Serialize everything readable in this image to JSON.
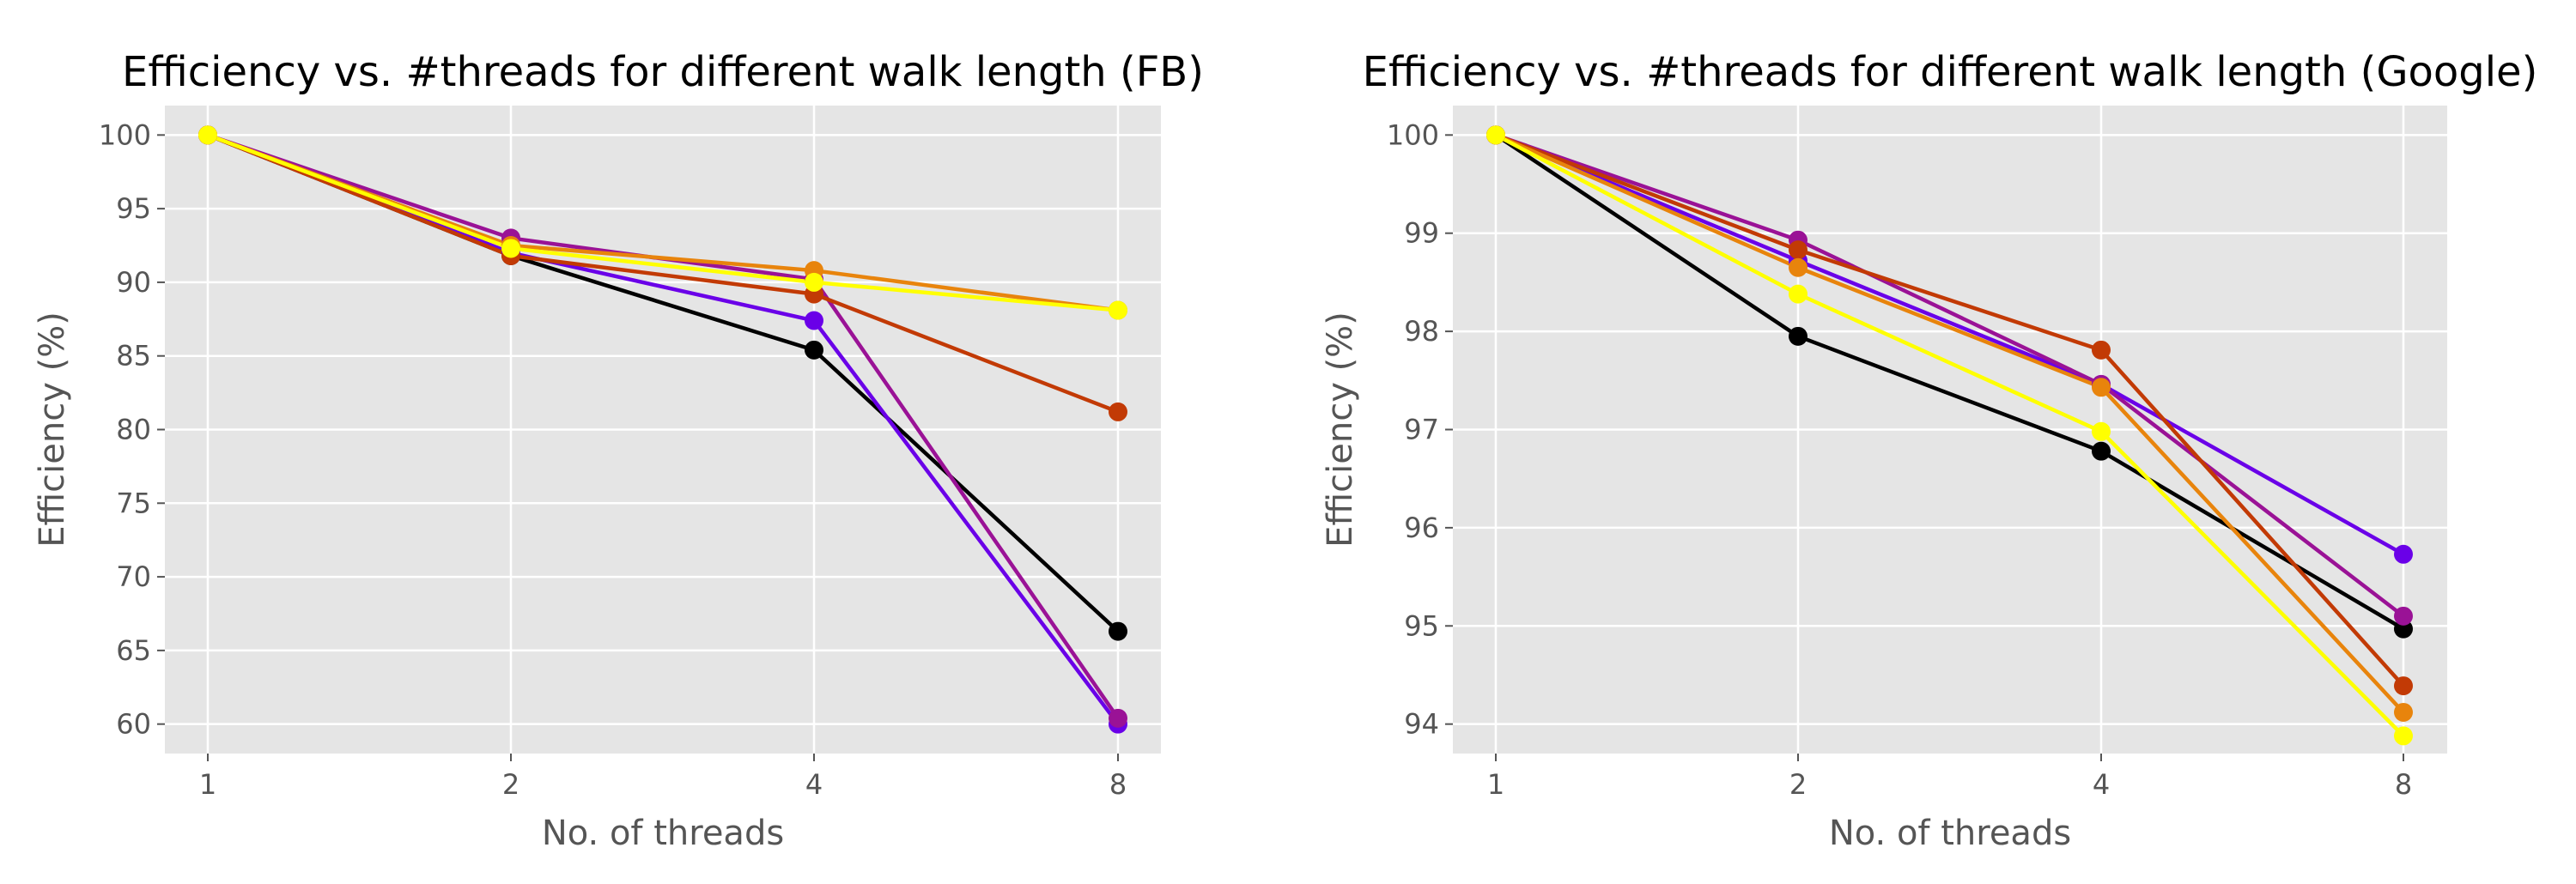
{
  "chart_data": [
    {
      "type": "line",
      "title": "Efficiency vs. #threads for different walk length (FB)",
      "xlabel": "No. of threads",
      "ylabel": "Efficiency (%)",
      "categories": [
        "1",
        "2",
        "4",
        "8"
      ],
      "ylim": [
        58,
        102
      ],
      "yticks": [
        "60",
        "65",
        "70",
        "75",
        "80",
        "85",
        "90",
        "95",
        "100"
      ],
      "grid": true,
      "series": [
        {
          "color": "#000000",
          "values": [
            100,
            91.8,
            85.4,
            66.3
          ]
        },
        {
          "color": "#6a00e8",
          "values": [
            100,
            92.0,
            87.4,
            60.0
          ]
        },
        {
          "color": "#9a1296",
          "values": [
            100,
            93.0,
            90.2,
            60.4
          ]
        },
        {
          "color": "#c23a05",
          "values": [
            100,
            91.8,
            89.2,
            81.2
          ]
        },
        {
          "color": "#e8840c",
          "values": [
            100,
            92.5,
            90.8,
            88.1
          ]
        },
        {
          "color": "#ffff00",
          "values": [
            100,
            92.3,
            90.0,
            88.1
          ]
        }
      ]
    },
    {
      "type": "line",
      "title": "Efficiency vs. #threads for different walk length (Google)",
      "xlabel": "No. of threads",
      "ylabel": "Efficiency (%)",
      "categories": [
        "1",
        "2",
        "4",
        "8"
      ],
      "ylim": [
        93.7,
        100.3
      ],
      "yticks": [
        "94",
        "95",
        "96",
        "97",
        "98",
        "99",
        "100"
      ],
      "grid": true,
      "series": [
        {
          "color": "#000000",
          "values": [
            100,
            97.95,
            96.78,
            94.97
          ]
        },
        {
          "color": "#6a00e8",
          "values": [
            100,
            98.72,
            97.46,
            95.73
          ]
        },
        {
          "color": "#9a1296",
          "values": [
            100,
            98.93,
            97.46,
            95.1
          ]
        },
        {
          "color": "#c23a05",
          "values": [
            100,
            98.83,
            97.81,
            94.39
          ]
        },
        {
          "color": "#e8840c",
          "values": [
            100,
            98.65,
            97.43,
            94.12
          ]
        },
        {
          "color": "#ffff00",
          "values": [
            100,
            98.38,
            96.98,
            93.88
          ]
        }
      ]
    }
  ]
}
